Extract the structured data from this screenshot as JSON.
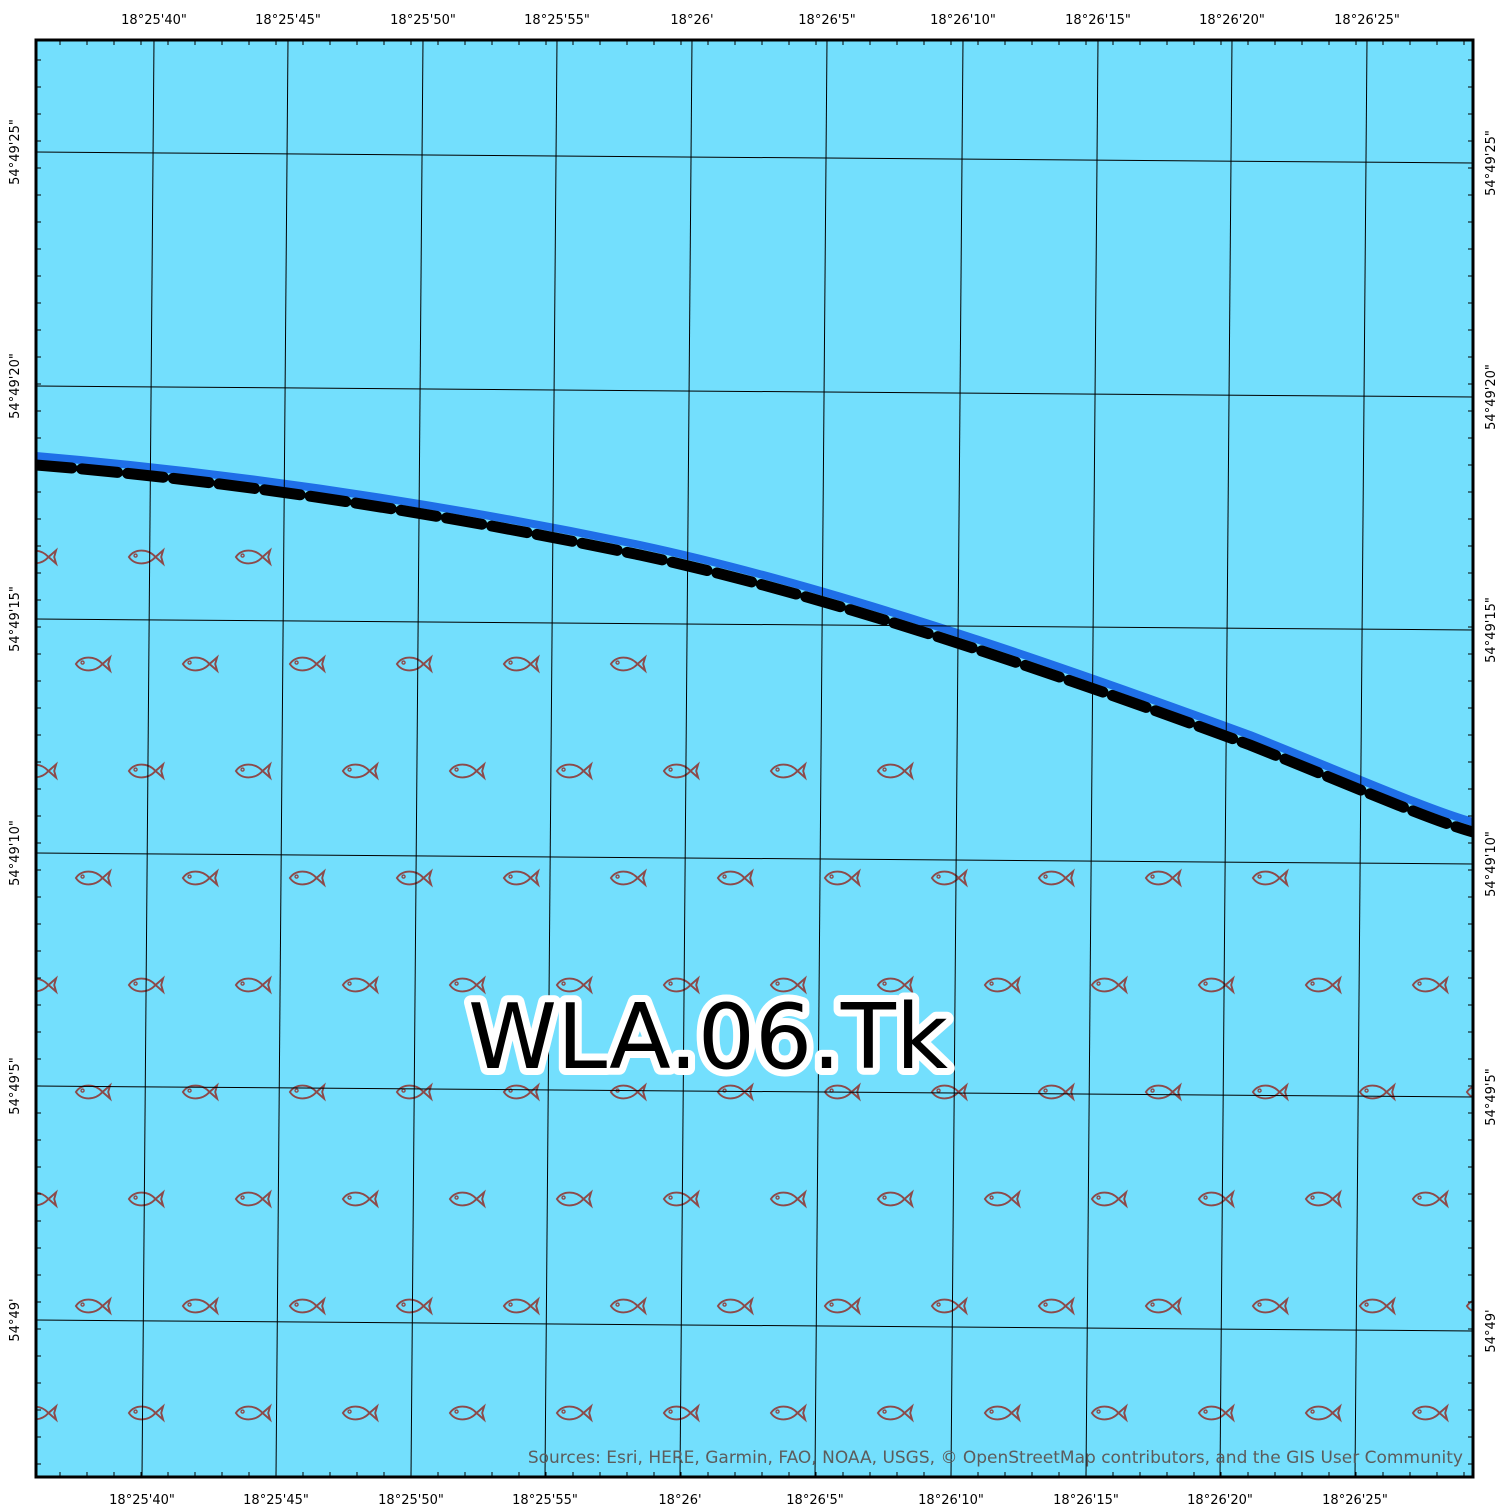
{
  "map": {
    "zone_label": "WLA.06.Tk",
    "attribution": "Sources:  Esri, HERE, Garmin, FAO, NOAA, USGS, © OpenStreetMap contributors, and the GIS User Community",
    "colors": {
      "water": "#73dffd",
      "boundary_blue": "#1f6fe8",
      "boundary_dash": "#000000",
      "fish_symbol": "#8c4a4a",
      "graticule": "#000000"
    },
    "top_longitude_labels": [
      "18°25'40\"",
      "18°25'45\"",
      "18°25'50\"",
      "18°25'55\"",
      "18°26'",
      "18°26'5\"",
      "18°26'10\"",
      "18°26'15\"",
      "18°26'20\"",
      "18°26'25\""
    ],
    "bottom_longitude_labels": [
      "18°25'40\"",
      "18°25'45\"",
      "18°25'50\"",
      "18°25'55\"",
      "18°26'",
      "18°26'5\"",
      "18°26'10\"",
      "18°26'15\"",
      "18°26'20\"",
      "18°26'25\""
    ],
    "left_latitude_labels": [
      "54°49'25\"",
      "54°49'20\"",
      "54°49'15\"",
      "54°49'10\"",
      "54°49'5\"",
      "54°49'"
    ],
    "right_latitude_labels": [
      "54°49'25\"",
      "54°49'20\"",
      "54°49'15\"",
      "54°49'10\"",
      "54°49'5\"",
      "54°49'"
    ],
    "fish_symbol_icon": "fish-icon"
  }
}
